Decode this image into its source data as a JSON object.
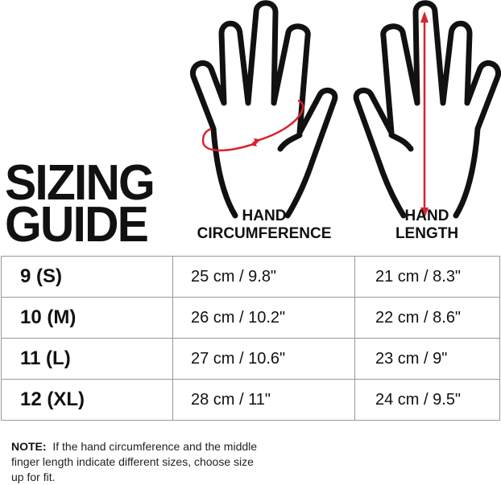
{
  "title": {
    "line1": "SIZING",
    "line2": "GUIDE"
  },
  "columns": {
    "circumference": {
      "line1": "HAND",
      "line2": "CIRCUMFERENCE"
    },
    "length": {
      "line1": "HAND",
      "line2": "LENGTH"
    }
  },
  "rows": [
    {
      "size": "9 (S)",
      "circumference": "25 cm / 9.8\"",
      "length": "21 cm / 8.3\""
    },
    {
      "size": "10 (M)",
      "circumference": "26 cm / 10.2\"",
      "length": "22 cm / 8.6\""
    },
    {
      "size": "11 (L)",
      "circumference": "27 cm / 10.6\"",
      "length": "23 cm / 9\""
    },
    {
      "size": "12 (XL)",
      "circumference": "28 cm / 11\"",
      "length": "24 cm / 9.5\""
    }
  ],
  "note": {
    "label": "NOTE:",
    "text": "If the hand circumference and the middle finger length indicate different sizes, choose size up for fit."
  },
  "colors": {
    "outline": "#111111",
    "accent": "#d9232e"
  },
  "icons": [
    "hand-circumference-icon",
    "hand-length-icon"
  ]
}
